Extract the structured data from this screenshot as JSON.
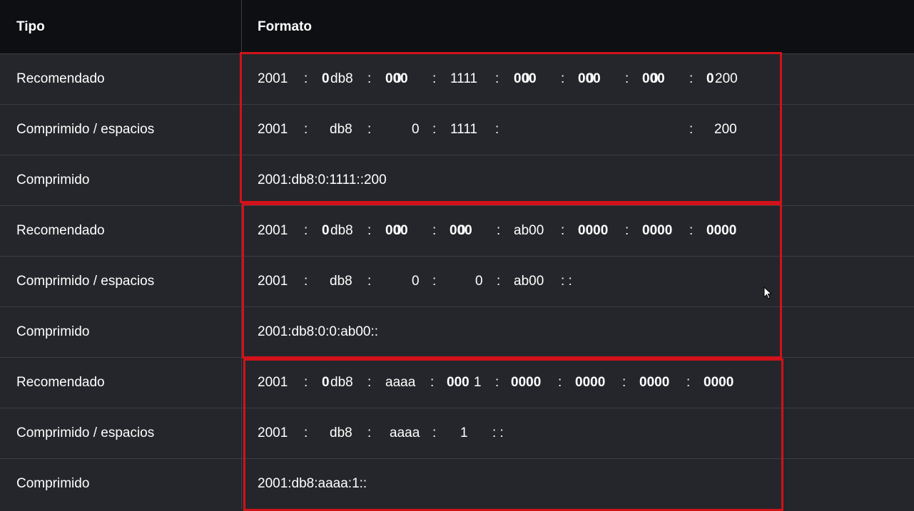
{
  "table": {
    "headers": {
      "tipo": "Tipo",
      "formato": "Formato"
    },
    "groups": [
      {
        "rows": [
          {
            "tipo": "Recomendado",
            "segments": [
              {
                "t": "2001",
                "b": false
              },
              {
                "t": ":",
                "b": false
              },
              {
                "t": "0",
                "b": true
              },
              {
                "t": "db8",
                "b": false
              },
              {
                "t": ":",
                "b": false
              },
              {
                "t": "000",
                "b": true
              },
              {
                "t": "0",
                "b": false
              },
              {
                "t": ":",
                "b": false
              },
              {
                "t": "1111",
                "b": false
              },
              {
                "t": ":",
                "b": false
              },
              {
                "t": "000",
                "b": true
              },
              {
                "t": "0",
                "b": false
              },
              {
                "t": ":",
                "b": false
              },
              {
                "t": "000",
                "b": true
              },
              {
                "t": "0",
                "b": false
              },
              {
                "t": ":",
                "b": false
              },
              {
                "t": "000",
                "b": true
              },
              {
                "t": "0",
                "b": false
              },
              {
                "t": ":",
                "b": false
              },
              {
                "t": "0",
                "b": true
              },
              {
                "t": "200",
                "b": false
              }
            ]
          },
          {
            "tipo": "Comprimido / espacios",
            "segments": [
              {
                "t": "2001"
              },
              {
                "t": ":"
              },
              {
                "t": "db8"
              },
              {
                "t": ":"
              },
              {
                "t": "0"
              },
              {
                "t": ":"
              },
              {
                "t": "1111"
              },
              {
                "t": ":"
              },
              {
                "t": ":"
              },
              {
                "t": "200"
              }
            ]
          },
          {
            "tipo": "Comprimido",
            "formato": "2001:db8:0:1111::200"
          }
        ]
      },
      {
        "rows": [
          {
            "tipo": "Recomendado",
            "segments": [
              {
                "t": "2001",
                "b": false
              },
              {
                "t": ":",
                "b": false
              },
              {
                "t": "0",
                "b": true
              },
              {
                "t": "db8",
                "b": false
              },
              {
                "t": ":",
                "b": false
              },
              {
                "t": "000",
                "b": true
              },
              {
                "t": "0",
                "b": false
              },
              {
                "t": ":",
                "b": false
              },
              {
                "t": "000",
                "b": true
              },
              {
                "t": "0",
                "b": false
              },
              {
                "t": ":",
                "b": false
              },
              {
                "t": "ab00",
                "b": false
              },
              {
                "t": ":",
                "b": false
              },
              {
                "t": "0000",
                "b": true
              },
              {
                "t": ":",
                "b": false
              },
              {
                "t": "0000",
                "b": true
              },
              {
                "t": ":",
                "b": false
              },
              {
                "t": "0000",
                "b": true
              }
            ]
          },
          {
            "tipo": "Comprimido / espacios",
            "segments": [
              {
                "t": "2001"
              },
              {
                "t": ":"
              },
              {
                "t": "db8"
              },
              {
                "t": ":"
              },
              {
                "t": "0"
              },
              {
                "t": ":"
              },
              {
                "t": "0"
              },
              {
                "t": ":"
              },
              {
                "t": "ab00"
              },
              {
                "t": ": :"
              }
            ]
          },
          {
            "tipo": "Comprimido",
            "formato": "2001:db8:0:0:ab00::"
          }
        ]
      },
      {
        "rows": [
          {
            "tipo": "Recomendado",
            "segments": [
              {
                "t": "2001",
                "b": false
              },
              {
                "t": ":",
                "b": false
              },
              {
                "t": "0",
                "b": true
              },
              {
                "t": "db8",
                "b": false
              },
              {
                "t": ":",
                "b": false
              },
              {
                "t": "aaaa",
                "b": false
              },
              {
                "t": ":",
                "b": false
              },
              {
                "t": "000",
                "b": true
              },
              {
                "t": "1",
                "b": false
              },
              {
                "t": ":",
                "b": false
              },
              {
                "t": "0000",
                "b": true
              },
              {
                "t": ":",
                "b": false
              },
              {
                "t": "0000",
                "b": true
              },
              {
                "t": ":",
                "b": false
              },
              {
                "t": "0000",
                "b": true
              },
              {
                "t": ":",
                "b": false
              },
              {
                "t": "0000",
                "b": true
              }
            ]
          },
          {
            "tipo": "Comprimido / espacios",
            "segments": [
              {
                "t": "2001"
              },
              {
                "t": ":"
              },
              {
                "t": "db8"
              },
              {
                "t": ":"
              },
              {
                "t": "aaaa"
              },
              {
                "t": ":"
              },
              {
                "t": "1"
              },
              {
                "t": ": :"
              }
            ]
          },
          {
            "tipo": "Comprimido",
            "formato": "2001:db8:aaaa:1::"
          }
        ]
      }
    ]
  },
  "colors": {
    "header_bg": "#0e0f12",
    "row_bg": "#25262b",
    "divider": "#3c3d42",
    "highlight": "#d1121a",
    "text": "#ffffff"
  },
  "cursor_icon": "mouse-pointer-icon"
}
